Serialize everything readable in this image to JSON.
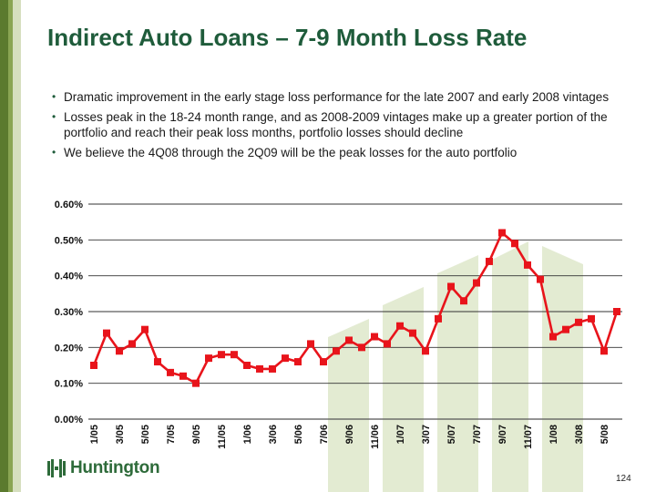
{
  "slide": {
    "title": "Indirect Auto Loans – 7-9 Month Loss Rate",
    "bullets": [
      "Dramatic improvement in the early stage loss performance for the late 2007 and early 2008 vintages",
      "Losses peak in the 18-24 month range, and as 2008-2009 vintages make up a greater portion of the portfolio and reach their peak loss months, portfolio losses should decline",
      "We believe the 4Q08 through the 2Q09 will be the peak losses for the auto portfolio"
    ],
    "logo_text": "Huntington",
    "page_number": "124"
  },
  "colors": {
    "title": "#1f5c3b",
    "series": "#e8141b",
    "sidebar": [
      "#5b7a2e",
      "#8aa553",
      "#d6dfbf"
    ],
    "watermark": "#e3ebd2"
  },
  "chart_data": {
    "type": "line",
    "title": "",
    "xlabel": "",
    "ylabel": "",
    "ylim": [
      0,
      0.006
    ],
    "yticks": [
      "0.00%",
      "0.10%",
      "0.20%",
      "0.30%",
      "0.40%",
      "0.50%",
      "0.60%"
    ],
    "grid": true,
    "legend": "none",
    "x": [
      "1/05",
      "2/05",
      "3/05",
      "4/05",
      "5/05",
      "6/05",
      "7/05",
      "8/05",
      "9/05",
      "10/05",
      "11/05",
      "12/05",
      "1/06",
      "2/06",
      "3/06",
      "4/06",
      "5/06",
      "6/06",
      "7/06",
      "8/06",
      "9/06",
      "10/06",
      "11/06",
      "12/06",
      "1/07",
      "2/07",
      "3/07",
      "4/07",
      "5/07",
      "6/07",
      "7/07",
      "8/07",
      "9/07",
      "10/07",
      "11/07",
      "12/07",
      "1/08",
      "2/08",
      "3/08",
      "4/08",
      "5/08",
      "6/08"
    ],
    "xtick_labels": [
      "1/05",
      "3/05",
      "5/05",
      "7/05",
      "9/05",
      "11/05",
      "1/06",
      "3/06",
      "5/06",
      "7/06",
      "9/06",
      "11/06",
      "1/07",
      "3/07",
      "5/07",
      "7/07",
      "9/07",
      "11/07",
      "1/08",
      "3/08",
      "5/08"
    ],
    "series": [
      {
        "name": "",
        "values": [
          0.0015,
          0.0024,
          0.0019,
          0.0021,
          0.0025,
          0.0016,
          0.0013,
          0.0012,
          0.001,
          0.0017,
          0.0018,
          0.0018,
          0.0015,
          0.0014,
          0.0014,
          0.0017,
          0.0016,
          0.0021,
          0.0016,
          0.0019,
          0.0022,
          0.002,
          0.0023,
          0.0021,
          0.0026,
          0.0024,
          0.0019,
          0.0028,
          0.0037,
          0.0033,
          0.0038,
          0.0044,
          0.0052,
          0.0049,
          0.0043,
          0.0039,
          0.0023,
          0.0025,
          0.0027,
          0.0028,
          0.0019,
          0.003
        ]
      }
    ]
  }
}
